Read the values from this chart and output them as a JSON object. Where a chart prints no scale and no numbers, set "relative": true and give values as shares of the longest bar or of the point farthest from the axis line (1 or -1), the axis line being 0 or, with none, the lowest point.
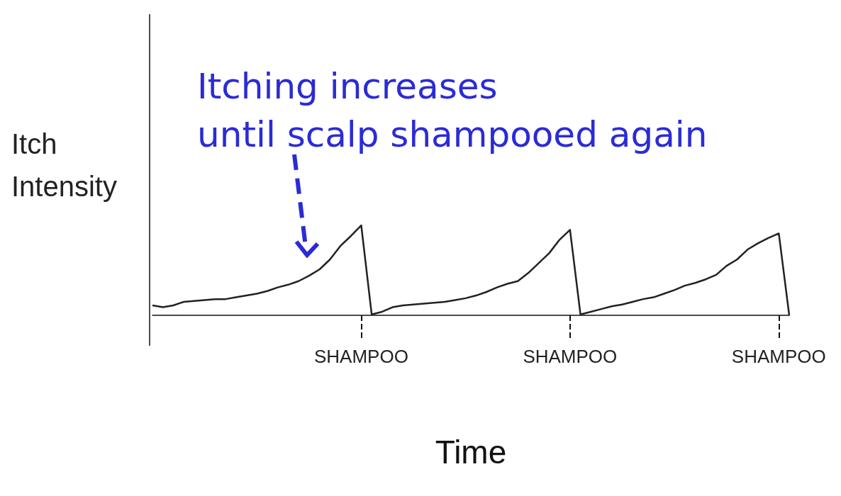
{
  "chart_data": {
    "type": "line",
    "relative": true,
    "xlabel": "Time",
    "ylabel": "Itch\nIntensity",
    "marker": "none",
    "annotations": [
      "Itching increases\nuntil scalp shampooed again"
    ],
    "categories": [
      null,
      null,
      null,
      null,
      null,
      null,
      null,
      null,
      null,
      null,
      null,
      null,
      null,
      null,
      null,
      null,
      null,
      null,
      null,
      null,
      "SHAMPOO",
      null,
      null,
      null,
      null,
      null,
      null,
      null,
      null,
      null,
      null,
      null,
      null,
      null,
      null,
      null,
      null,
      null,
      null,
      null,
      "SHAMPOO",
      null,
      null,
      null,
      null,
      null,
      null,
      null,
      null,
      null,
      null,
      null,
      null,
      null,
      null,
      null,
      null,
      null,
      null,
      null,
      "SHAMPOO",
      null
    ],
    "series": [
      {
        "color": "#222222",
        "values": [
          0.11,
          0.09,
          0.11,
          0.15,
          0.16,
          0.17,
          0.18,
          0.18,
          0.2,
          0.22,
          0.24,
          0.27,
          0.31,
          0.34,
          0.38,
          0.44,
          0.51,
          0.62,
          0.77,
          0.88,
          1,
          0.01,
          0.04,
          0.09,
          0.11,
          0.12,
          0.13,
          0.14,
          0.15,
          0.17,
          0.19,
          0.22,
          0.26,
          0.31,
          0.35,
          0.38,
          0.47,
          0.58,
          0.69,
          0.84,
          0.95,
          0.01,
          0.04,
          0.07,
          0.1,
          0.12,
          0.15,
          0.18,
          0.2,
          0.24,
          0.28,
          0.33,
          0.36,
          0.4,
          0.45,
          0.55,
          0.62,
          0.73,
          0.8,
          0.86,
          0.91,
          0
        ]
      }
    ]
  }
}
